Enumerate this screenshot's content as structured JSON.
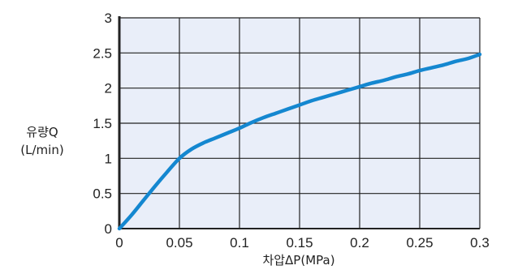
{
  "chart_data": {
    "type": "line",
    "xlabel": "차압ΔP(MPa)",
    "ylabel_lines": [
      "유량Q",
      "(L/min)"
    ],
    "xlim": [
      0,
      0.3
    ],
    "ylim": [
      0,
      3
    ],
    "x_ticks": [
      0,
      0.05,
      0.1,
      0.15,
      0.2,
      0.25,
      0.3
    ],
    "x_tick_labels": [
      "0",
      "0.05",
      "0.1",
      "0.15",
      "0.2",
      "0.25",
      "0.3"
    ],
    "y_ticks": [
      0,
      0.5,
      1,
      1.5,
      2,
      2.5,
      3
    ],
    "y_tick_labels": [
      "0",
      "0.5",
      "1",
      "1.5",
      "2",
      "2.5",
      "3"
    ],
    "grid": true,
    "series": [
      {
        "x": [
          0,
          0.01,
          0.02,
          0.03,
          0.04,
          0.05,
          0.06,
          0.07,
          0.08,
          0.09,
          0.1,
          0.11,
          0.12,
          0.13,
          0.14,
          0.15,
          0.16,
          0.17,
          0.18,
          0.19,
          0.2,
          0.21,
          0.22,
          0.23,
          0.24,
          0.25,
          0.26,
          0.27,
          0.28,
          0.29,
          0.3
        ],
        "y": [
          0,
          0.19,
          0.4,
          0.61,
          0.81,
          1.0,
          1.13,
          1.22,
          1.29,
          1.36,
          1.43,
          1.51,
          1.58,
          1.64,
          1.7,
          1.76,
          1.82,
          1.87,
          1.92,
          1.97,
          2.02,
          2.07,
          2.11,
          2.16,
          2.2,
          2.25,
          2.29,
          2.33,
          2.38,
          2.42,
          2.48
        ]
      }
    ],
    "colors": {
      "line": "#1487d0",
      "plot_background": "#e9eef9",
      "grid": "#222222",
      "axes": "#222222"
    }
  }
}
